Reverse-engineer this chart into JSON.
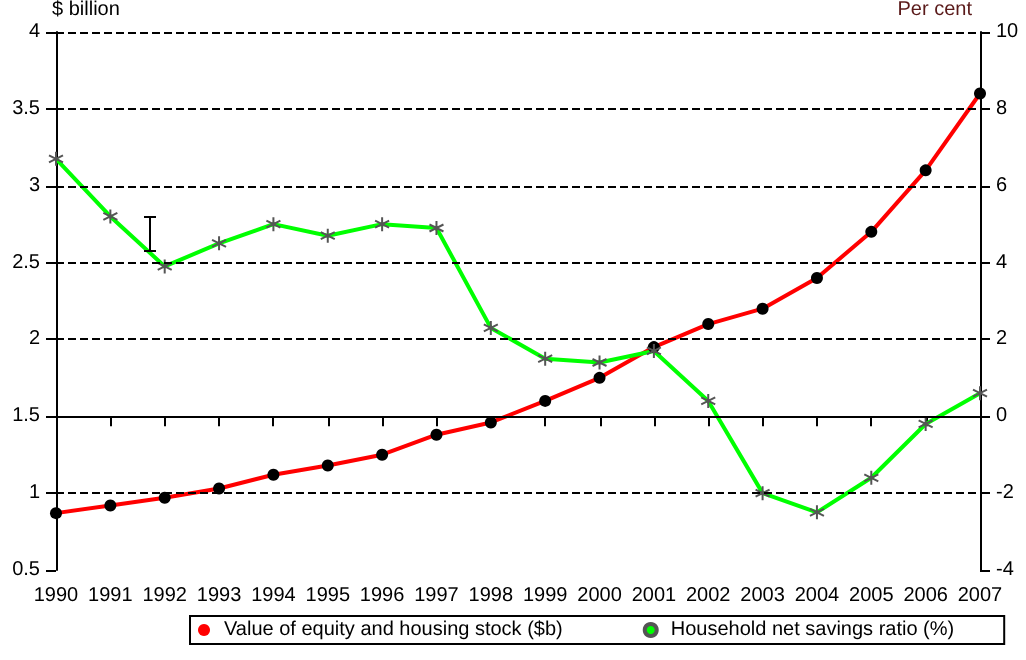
{
  "chart_data": {
    "type": "line",
    "ylabel": "$ billion",
    "y2label": "Per cent",
    "categories": [
      "1990",
      "1991",
      "1992",
      "1993",
      "1994",
      "1995",
      "1996",
      "1997",
      "1998",
      "1999",
      "2000",
      "2001",
      "2002",
      "2003",
      "2004",
      "2005",
      "2006",
      "2007"
    ],
    "series": [
      {
        "name": "Value of equity and housing stock ($b)",
        "color": "#ff0000",
        "marker": "circle",
        "values": [
          0.87,
          0.92,
          0.97,
          1.03,
          1.12,
          1.18,
          1.25,
          1.38,
          1.46,
          1.6,
          1.75,
          1.95,
          2.1,
          2.2,
          2.4,
          2.7,
          3.1,
          3.6
        ]
      },
      {
        "name": "Household net savings ratio (%)",
        "color": "#00ff00",
        "marker": "cross",
        "axis": "y2",
        "values": [
          6.7,
          5.2,
          3.9,
          4.5,
          5.0,
          4.7,
          5.0,
          4.9,
          2.3,
          1.5,
          1.4,
          1.7,
          0.4,
          -2.0,
          -2.5,
          -1.6,
          -0.2,
          0.6
        ]
      }
    ],
    "ylim": [
      0.5,
      4
    ],
    "yticks": [
      0.5,
      1,
      1.5,
      2,
      2.5,
      3,
      3.5,
      4
    ],
    "y2lim": [
      -4,
      10
    ],
    "y2ticks": [
      -4,
      -2,
      0,
      2,
      4,
      6,
      8,
      10
    ],
    "ref_lines": [
      {
        "axis": "y2",
        "value": 0,
        "color": "#000000"
      }
    ],
    "grid": "y",
    "legend": "bottom",
    "line_style": "solid"
  }
}
